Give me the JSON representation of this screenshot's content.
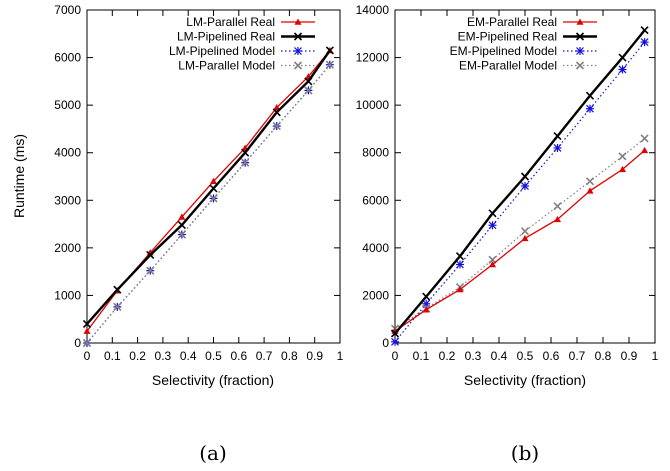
{
  "chart_data": [
    {
      "type": "line",
      "caption": "(a)",
      "xlabel": "Selectivity (fraction)",
      "ylabel": "Runtime (ms)",
      "xlim": [
        0,
        1
      ],
      "ylim": [
        0,
        7000
      ],
      "xticks": [
        0,
        0.1,
        0.2,
        0.3,
        0.4,
        0.5,
        0.6,
        0.7,
        0.8,
        0.9,
        1
      ],
      "yticks": [
        0,
        1000,
        2000,
        3000,
        4000,
        5000,
        6000,
        7000
      ],
      "grid": false,
      "legend_position": "top-right",
      "series": [
        {
          "name": "LM-Parallel Real",
          "color": "#e00000",
          "marker": "triangle",
          "style": "solid",
          "x": [
            0,
            0.12,
            0.25,
            0.375,
            0.5,
            0.625,
            0.75,
            0.875,
            0.96
          ],
          "y": [
            250,
            1100,
            1900,
            2650,
            3400,
            4100,
            4950,
            5600,
            6150
          ]
        },
        {
          "name": "LM-Pipelined Real",
          "color": "#000000",
          "marker": "x",
          "style": "solid",
          "x": [
            0,
            0.12,
            0.25,
            0.375,
            0.5,
            0.625,
            0.75,
            0.875,
            0.96
          ],
          "y": [
            400,
            1120,
            1850,
            2480,
            3250,
            4000,
            4850,
            5500,
            6150
          ]
        },
        {
          "name": "LM-Pipelined Model",
          "color": "#1010e0",
          "marker": "star",
          "style": "dotted",
          "x": [
            0,
            0.12,
            0.25,
            0.375,
            0.5,
            0.625,
            0.75,
            0.875,
            0.96
          ],
          "y": [
            0,
            760,
            1520,
            2280,
            3040,
            3790,
            4560,
            5310,
            5850
          ]
        },
        {
          "name": "LM-Parallel Model",
          "color": "#808080",
          "marker": "x",
          "style": "dotted",
          "x": [
            0,
            0.12,
            0.25,
            0.375,
            0.5,
            0.625,
            0.75,
            0.875,
            0.96
          ],
          "y": [
            0,
            760,
            1520,
            2280,
            3040,
            3790,
            4560,
            5310,
            5850
          ]
        }
      ]
    },
    {
      "type": "line",
      "caption": "(b)",
      "xlabel": "Selectivity (fraction)",
      "ylabel": "",
      "xlim": [
        0,
        1
      ],
      "ylim": [
        0,
        14000
      ],
      "xticks": [
        0,
        0.1,
        0.2,
        0.3,
        0.4,
        0.5,
        0.6,
        0.7,
        0.8,
        0.9,
        1
      ],
      "yticks": [
        0,
        2000,
        4000,
        6000,
        8000,
        10000,
        12000,
        14000
      ],
      "grid": false,
      "legend_position": "top-right",
      "series": [
        {
          "name": "EM-Parallel Real",
          "color": "#e00000",
          "marker": "triangle",
          "style": "solid",
          "x": [
            0,
            0.12,
            0.25,
            0.375,
            0.5,
            0.625,
            0.75,
            0.875,
            0.96
          ],
          "y": [
            500,
            1400,
            2250,
            3300,
            4400,
            5200,
            6400,
            7300,
            8100
          ]
        },
        {
          "name": "EM-Pipelined Real",
          "color": "#000000",
          "marker": "x",
          "style": "solid",
          "x": [
            0,
            0.12,
            0.25,
            0.375,
            0.5,
            0.625,
            0.75,
            0.875,
            0.96
          ],
          "y": [
            400,
            1950,
            3650,
            5450,
            7000,
            8700,
            10400,
            12000,
            13150
          ]
        },
        {
          "name": "EM-Pipelined Model",
          "color": "#1010e0",
          "marker": "star",
          "style": "dotted",
          "x": [
            0,
            0.12,
            0.25,
            0.375,
            0.5,
            0.625,
            0.75,
            0.875,
            0.96
          ],
          "y": [
            50,
            1650,
            3300,
            4950,
            6600,
            8200,
            9850,
            11500,
            12650
          ]
        },
        {
          "name": "EM-Parallel Model",
          "color": "#808080",
          "marker": "x",
          "style": "dotted",
          "x": [
            0,
            0.12,
            0.25,
            0.375,
            0.5,
            0.625,
            0.75,
            0.875,
            0.96
          ],
          "y": [
            600,
            1450,
            2350,
            3500,
            4700,
            5750,
            6800,
            7850,
            8600
          ]
        }
      ]
    }
  ]
}
